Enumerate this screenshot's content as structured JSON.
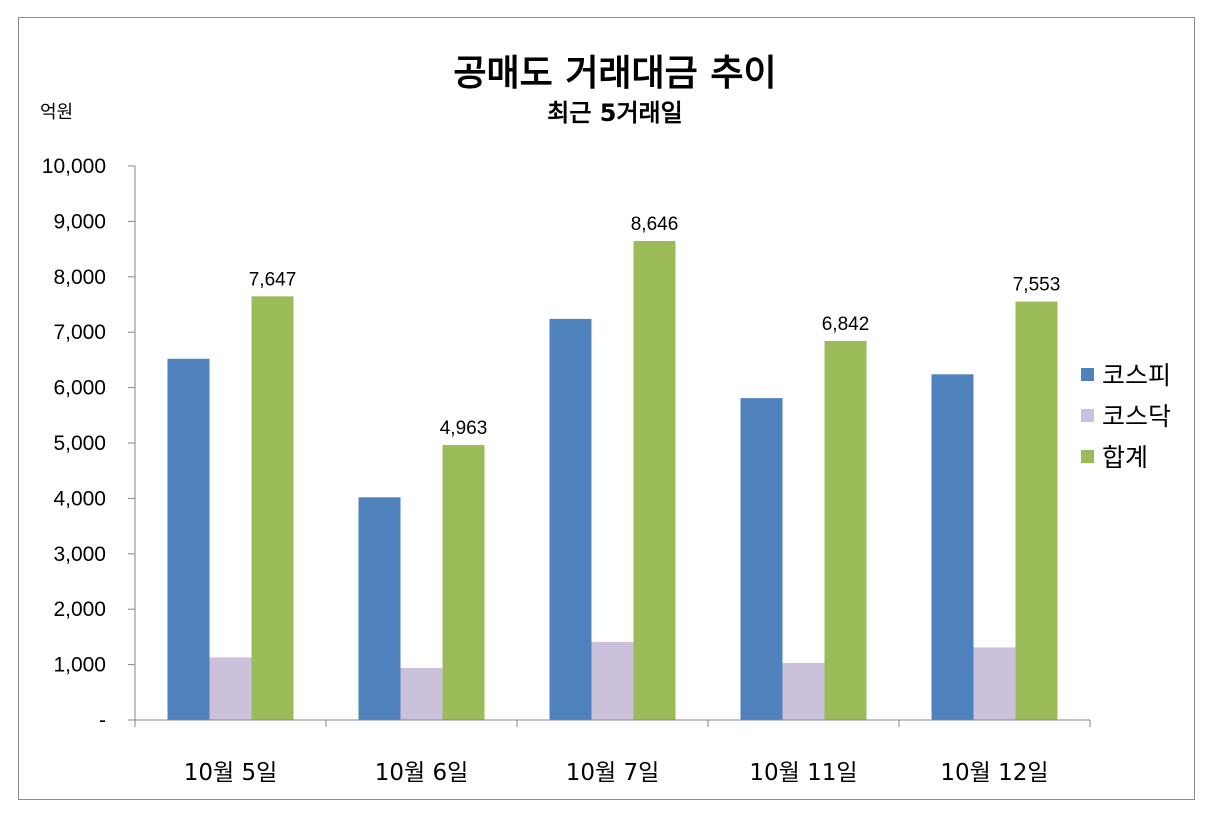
{
  "chart_data": {
    "type": "bar",
    "title": "공매도 거래대금 추이",
    "subtitle": "최근 5거래일",
    "ylabel": "억원",
    "xlabel": "",
    "categories": [
      "10월 5일",
      "10월 6일",
      "10월 7일",
      "10월 11일",
      "10월 12일"
    ],
    "series": [
      {
        "name": "코스피",
        "color": "#4f81bd",
        "values": [
          6520,
          4020,
          7240,
          5810,
          6240
        ]
      },
      {
        "name": "코스닥",
        "color": "#ccc1da",
        "values": [
          1130,
          940,
          1410,
          1030,
          1310
        ]
      },
      {
        "name": "합계",
        "color": "#9bbb59",
        "values": [
          7647,
          4963,
          8646,
          6842,
          7553
        ]
      }
    ],
    "data_labels": {
      "series": "합계",
      "labels": [
        "7,647",
        "4,963",
        "8,646",
        "6,842",
        "7,553"
      ]
    },
    "ylim": [
      0,
      10000
    ],
    "y_ticks": [
      {
        "value": 0,
        "label": "-"
      },
      {
        "value": 1000,
        "label": "1,000"
      },
      {
        "value": 2000,
        "label": "2,000"
      },
      {
        "value": 3000,
        "label": "3,000"
      },
      {
        "value": 4000,
        "label": "4,000"
      },
      {
        "value": 5000,
        "label": "5,000"
      },
      {
        "value": 6000,
        "label": "6,000"
      },
      {
        "value": 7000,
        "label": "7,000"
      },
      {
        "value": 8000,
        "label": "8,000"
      },
      {
        "value": 9000,
        "label": "9,000"
      },
      {
        "value": 10000,
        "label": "10,000"
      }
    ],
    "grid": false,
    "legend_position": "right"
  }
}
